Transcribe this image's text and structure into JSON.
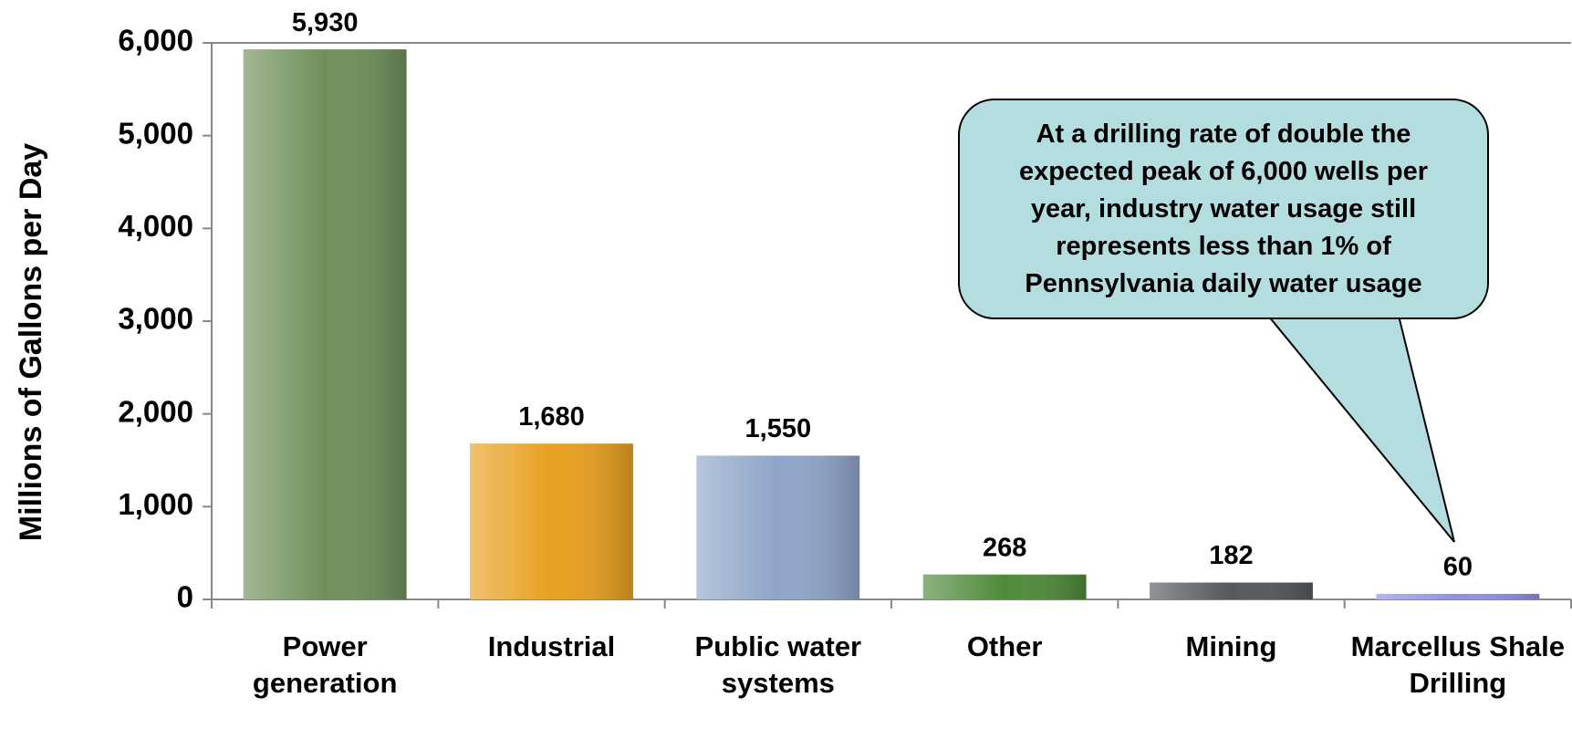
{
  "chart_data": {
    "type": "bar",
    "y_axis_label": "Millions of Gallons per Day",
    "categories": [
      "Power generation",
      "Industrial",
      "Public water systems",
      "Other",
      "Mining",
      "Marcellus Shale Drilling"
    ],
    "values": [
      5930,
      1680,
      1550,
      268,
      182,
      60
    ],
    "value_labels": [
      "5,930",
      "1,680",
      "1,550",
      "268",
      "182",
      "60"
    ],
    "colors": [
      "#6f8f5a",
      "#e8a020",
      "#8fa4c8",
      "#4f8a3a",
      "#55585c",
      "#8f8fe6"
    ],
    "ylim": [
      0,
      6000
    ],
    "yticks": [
      0,
      {
        "value": 1000,
        "label": "1,000"
      },
      {
        "value": 2000,
        "label": "2,000"
      },
      {
        "value": 3000,
        "label": "3,000"
      },
      {
        "value": 4000,
        "label": "4,000"
      },
      {
        "value": 5000,
        "label": "5,000"
      },
      {
        "value": 6000,
        "label": "6,000"
      }
    ],
    "grid": false,
    "annotation": "At a drilling rate of double the expected peak of 6,000 wells per year, industry water usage still represents less than 1% of Pennsylvania daily water usage"
  }
}
